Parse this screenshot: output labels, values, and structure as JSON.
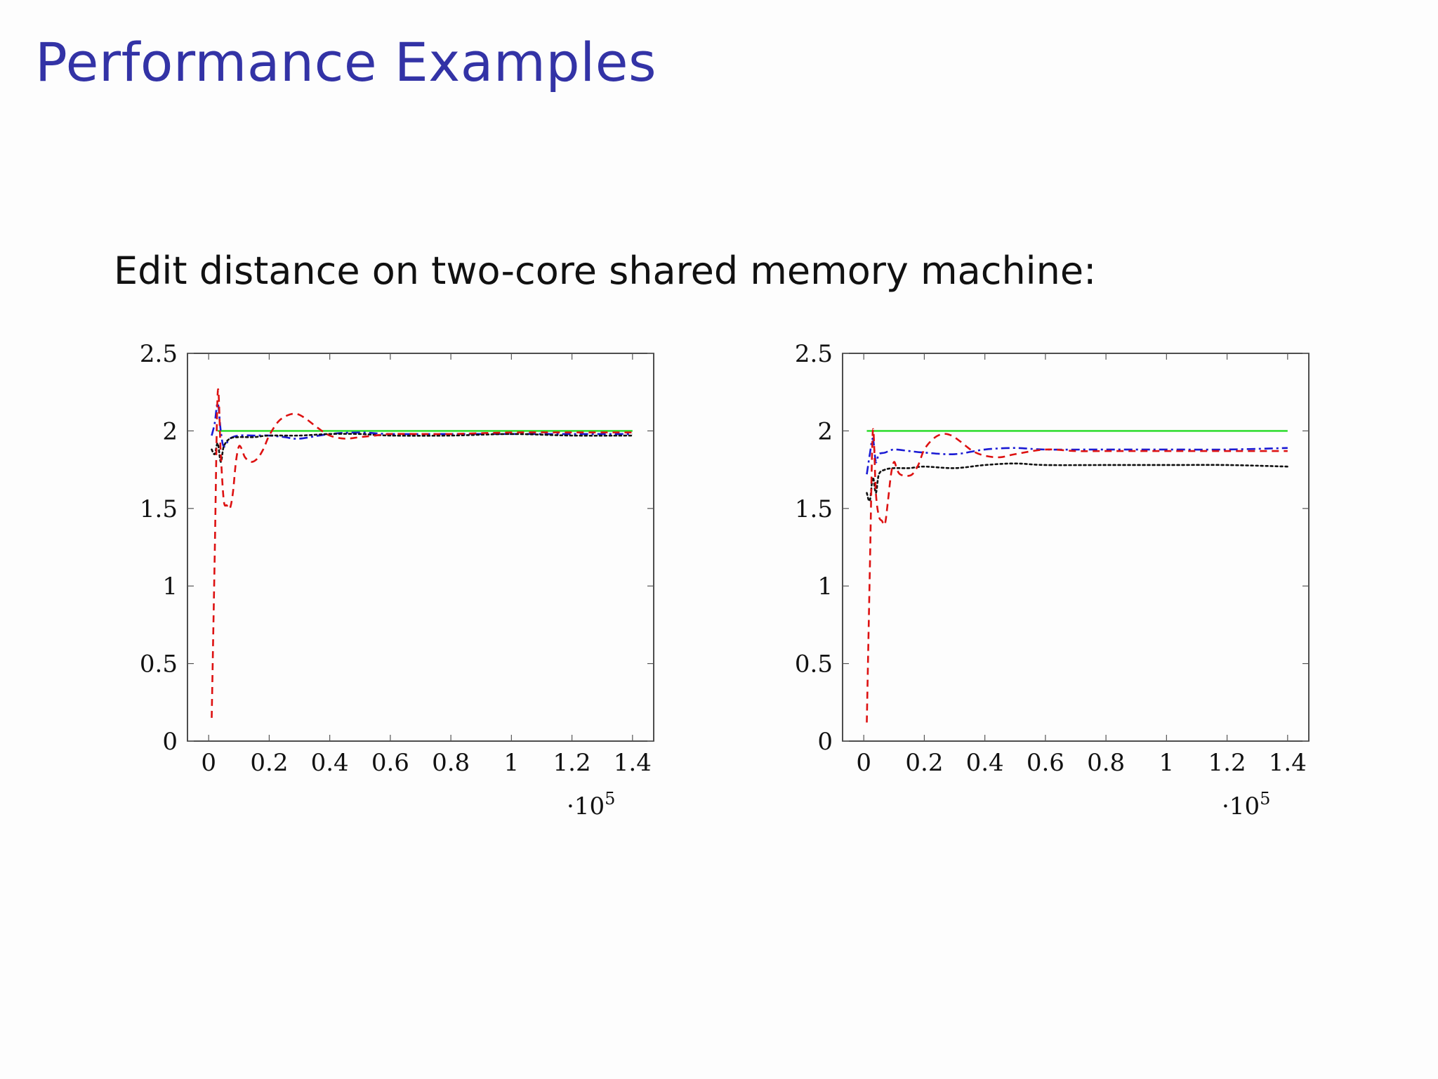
{
  "slide": {
    "title": "Performance Examples",
    "subtitle": "Edit distance on two-core shared memory machine:"
  },
  "colors": {
    "title": "#3333a6",
    "green": "#33dd33",
    "blue": "#1a1ad4",
    "red": "#dd1111",
    "black": "#111111"
  },
  "chart_data": [
    {
      "type": "line",
      "title": "",
      "xlabel": "",
      "ylabel": "",
      "xlim": [
        -7000,
        147000
      ],
      "ylim": [
        0,
        2.5
      ],
      "x_ticks": [
        0,
        20000,
        40000,
        60000,
        80000,
        100000,
        120000,
        140000
      ],
      "x_tick_labels": [
        "0",
        "0.2",
        "0.4",
        "0.6",
        "0.8",
        "1",
        "1.2",
        "1.4"
      ],
      "x_scale_label": "·10",
      "x_scale_exponent": "5",
      "y_ticks": [
        0,
        0.5,
        1,
        1.5,
        2,
        2.5
      ],
      "y_tick_labels": [
        "0",
        "0.5",
        "1",
        "1.5",
        "2",
        "2.5"
      ],
      "grid": false,
      "series": [
        {
          "color": "green",
          "style": "solid",
          "x": [
            3000,
            140000
          ],
          "y": [
            2.0,
            2.0
          ]
        },
        {
          "color": "blue",
          "style": "dashdot",
          "x": [
            1000,
            2000,
            3000,
            4000,
            5000,
            7000,
            10000,
            15000,
            20000,
            25000,
            30000,
            40000,
            50000,
            60000,
            80000,
            100000,
            120000,
            140000
          ],
          "y": [
            1.97,
            2.05,
            2.18,
            2.0,
            1.9,
            1.95,
            1.97,
            1.97,
            1.97,
            1.96,
            1.95,
            1.98,
            1.99,
            1.98,
            1.98,
            1.98,
            1.98,
            1.98
          ]
        },
        {
          "color": "black",
          "style": "dotted",
          "x": [
            1000,
            2000,
            3000,
            4000,
            5000,
            7000,
            10000,
            15000,
            20000,
            30000,
            40000,
            50000,
            60000,
            80000,
            100000,
            120000,
            140000
          ],
          "y": [
            1.88,
            1.85,
            1.92,
            1.8,
            1.9,
            1.95,
            1.96,
            1.96,
            1.97,
            1.97,
            1.98,
            1.98,
            1.97,
            1.97,
            1.98,
            1.97,
            1.97
          ],
          "name": ""
        },
        {
          "color": "red",
          "style": "dashed",
          "x": [
            1000,
            2000,
            3000,
            4000,
            5000,
            6000,
            7000,
            8000,
            9000,
            10000,
            11000,
            12000,
            14000,
            16000,
            18000,
            20000,
            23000,
            26000,
            29000,
            32000,
            36000,
            40000,
            45000,
            50000,
            55000,
            60000,
            70000,
            80000,
            100000,
            120000,
            140000
          ],
          "y": [
            0.15,
            1.2,
            2.25,
            1.85,
            1.55,
            1.52,
            1.5,
            1.6,
            1.8,
            1.9,
            1.88,
            1.83,
            1.8,
            1.82,
            1.88,
            1.97,
            2.06,
            2.1,
            2.11,
            2.08,
            2.02,
            1.97,
            1.95,
            1.96,
            1.97,
            1.98,
            1.98,
            1.98,
            1.99,
            1.99,
            1.99
          ]
        }
      ]
    },
    {
      "type": "line",
      "title": "",
      "xlabel": "",
      "ylabel": "",
      "xlim": [
        -7000,
        147000
      ],
      "ylim": [
        0,
        2.5
      ],
      "x_ticks": [
        0,
        20000,
        40000,
        60000,
        80000,
        100000,
        120000,
        140000
      ],
      "x_tick_labels": [
        "0",
        "0.2",
        "0.4",
        "0.6",
        "0.8",
        "1",
        "1.2",
        "1.4"
      ],
      "x_scale_label": "·10",
      "x_scale_exponent": "5",
      "y_ticks": [
        0,
        0.5,
        1,
        1.5,
        2,
        2.5
      ],
      "y_tick_labels": [
        "0",
        "0.5",
        "1",
        "1.5",
        "2",
        "2.5"
      ],
      "grid": false,
      "series": [
        {
          "color": "green",
          "style": "solid",
          "x": [
            1000,
            140000
          ],
          "y": [
            2.0,
            2.0
          ]
        },
        {
          "color": "blue",
          "style": "dashdot",
          "x": [
            1000,
            2000,
            3000,
            4000,
            5000,
            7000,
            10000,
            15000,
            20000,
            30000,
            40000,
            50000,
            60000,
            80000,
            100000,
            120000,
            140000
          ],
          "y": [
            1.72,
            1.85,
            1.95,
            1.8,
            1.85,
            1.86,
            1.88,
            1.87,
            1.86,
            1.85,
            1.88,
            1.89,
            1.88,
            1.88,
            1.88,
            1.88,
            1.89
          ]
        },
        {
          "color": "black",
          "style": "dotted",
          "x": [
            1000,
            2000,
            3000,
            4000,
            5000,
            7000,
            10000,
            15000,
            20000,
            30000,
            40000,
            50000,
            60000,
            80000,
            100000,
            120000,
            140000
          ],
          "y": [
            1.6,
            1.55,
            1.7,
            1.6,
            1.72,
            1.75,
            1.76,
            1.76,
            1.77,
            1.76,
            1.78,
            1.79,
            1.78,
            1.78,
            1.78,
            1.78,
            1.77
          ]
        },
        {
          "color": "red",
          "style": "dashed",
          "x": [
            1000,
            2000,
            3000,
            4000,
            5000,
            6000,
            7000,
            8000,
            9000,
            10000,
            11000,
            12000,
            14000,
            16000,
            18000,
            20000,
            23000,
            26000,
            29000,
            32000,
            36000,
            40000,
            45000,
            50000,
            60000,
            70000,
            80000,
            100000,
            120000,
            140000
          ],
          "y": [
            0.12,
            1.1,
            2.0,
            1.6,
            1.45,
            1.42,
            1.4,
            1.55,
            1.72,
            1.8,
            1.75,
            1.72,
            1.71,
            1.72,
            1.78,
            1.88,
            1.95,
            1.98,
            1.97,
            1.93,
            1.87,
            1.84,
            1.83,
            1.85,
            1.88,
            1.87,
            1.87,
            1.87,
            1.87,
            1.87
          ]
        }
      ]
    }
  ]
}
